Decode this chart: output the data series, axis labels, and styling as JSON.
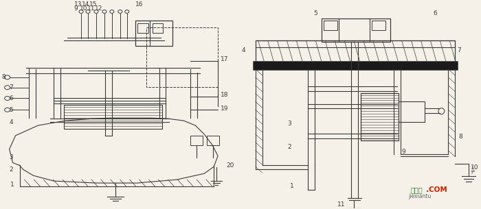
{
  "fig_width": 7.0,
  "fig_height": 3.05,
  "dpi": 100,
  "bg_color": "#f5f0e8",
  "line_color": "#3a3a3a",
  "watermark_text": "接线图",
  "watermark_color": "#228B22",
  "watermark2_text": ".COM",
  "watermark2_color": "#cc2200",
  "watermark3_text": "jiexiantu"
}
